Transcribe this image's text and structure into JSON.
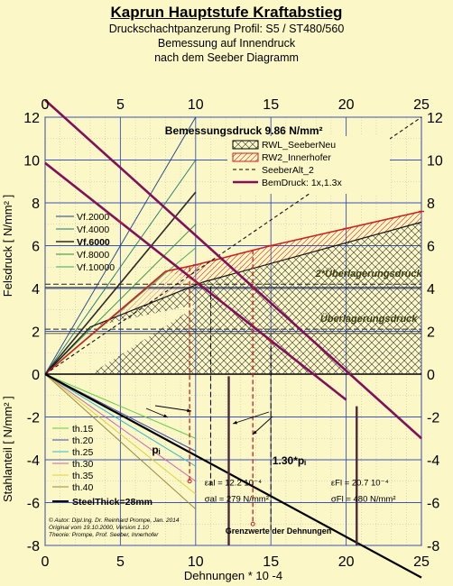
{
  "header": {
    "title": "Kaprun Hauptstufe Kraftabstieg",
    "line1": "Druckschachtpanzerung Profil: S5 / ST480/560",
    "line2": "Bemessung auf Innendruck",
    "line3": "nach dem Seeber Diagramm"
  },
  "chart_data": {
    "type": "line",
    "title": "Bemessungsdruck 9.86 N/mm²",
    "xlabel": "Dehnungen * 10 -4",
    "ylabel_upper": "Felsdruck [ N/mm² ]",
    "ylabel_lower": "Stahlanteil [ N/mm² ]",
    "xlim": [
      0,
      25
    ],
    "ylim": [
      -8,
      12
    ],
    "x_ticks": [
      0,
      5,
      10,
      15,
      20,
      25
    ],
    "y_ticks": [
      -8,
      -6,
      -4,
      -2,
      0,
      2,
      4,
      6,
      8,
      10,
      12
    ],
    "grid": true,
    "legend_main": [
      {
        "name": "RWL_SeeberNeu",
        "color": "#000000",
        "style": "hatch"
      },
      {
        "name": "RW2_Innerhofer",
        "color": "#cc2020",
        "style": "hatch"
      },
      {
        "name": "SeeberAlt_2",
        "color": "#000000",
        "style": "dashed"
      },
      {
        "name": "BemDruck: 1x,1.3x",
        "color": "#80105a",
        "style": "thick"
      }
    ],
    "legend_vf": [
      {
        "name": "Vf.2000",
        "color": "#1a3f8f"
      },
      {
        "name": "Vf.4000",
        "color": "#1a7a6e"
      },
      {
        "name": "Vf.6000",
        "color": "#2a2a2a"
      },
      {
        "name": "Vf.8000",
        "color": "#2e8b3e"
      },
      {
        "name": "Vf.10000",
        "color": "#3aaa5a"
      }
    ],
    "legend_th": [
      {
        "name": "th.15",
        "color": "#66cc44"
      },
      {
        "name": "th.20",
        "color": "#3a4aaa"
      },
      {
        "name": "th.25",
        "color": "#33bbcc"
      },
      {
        "name": "th.30",
        "color": "#cc66aa"
      },
      {
        "name": "th.35",
        "color": "#e0d040"
      },
      {
        "name": "th.40",
        "color": "#9a8a40"
      },
      {
        "name": "SteelThick=28mm",
        "color": "#000000"
      }
    ],
    "series": [
      {
        "name": "RWL_SeeberNeu",
        "x": [
          0,
          3,
          10.5,
          25
        ],
        "y": [
          0,
          2.2,
          4.3,
          7.1
        ]
      },
      {
        "name": "RW2_Innerhofer",
        "x": [
          0,
          4,
          8,
          10,
          15,
          25
        ],
        "y": [
          0,
          2.4,
          4.8,
          5.1,
          6.0,
          7.6
        ]
      },
      {
        "name": "SeeberAlt_2",
        "x": [
          0,
          25
        ],
        "y": [
          0,
          12
        ]
      },
      {
        "name": "BemDruck 1x",
        "x": [
          0,
          20
        ],
        "y": [
          9.86,
          -1.2
        ]
      },
      {
        "name": "BemDruck 1.3x",
        "x": [
          0,
          25
        ],
        "y": [
          12.8,
          -3.0
        ]
      },
      {
        "name": "SteelThick=28mm",
        "x": [
          0,
          25
        ],
        "y": [
          0,
          -9.5
        ]
      }
    ],
    "annotations": {
      "ueberlagerung2": "2*Überlagerungsdruck",
      "ueberlagerung": "Überlagerungsdruck",
      "pi": "pᵢ",
      "pi13": "1.30*pᵢ",
      "eps_al": "εal = 12.2 10⁻⁴",
      "sig_al": "σal = 279 N/mm²",
      "eps_fl": "εFl = 20.7 10⁻⁴",
      "sig_fl": "σFl = 480 N/mm²",
      "grenzwerte": "Grenzwerte der Dehnungen",
      "author1": "© Autor: Dipl.Ing. Dr. Reinhard Prompe, Jan. 2014",
      "author2": "Original vom 19.10.2000, Version 1.10",
      "author3": "Theorie: Prompe, Prof. Seeber, Innerhofer"
    }
  }
}
